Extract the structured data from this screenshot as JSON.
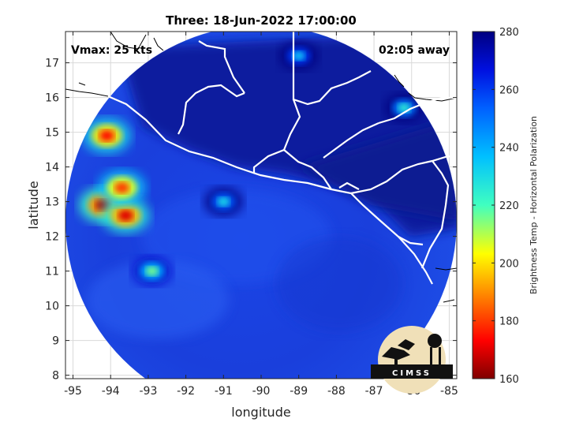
{
  "title": "Three: 18-Jun-2022 17:00:00",
  "vmax_label": "Vmax: 25 kts",
  "time_away": "02:05 away",
  "xlabel": "longitude",
  "ylabel": "latitude",
  "colorbar_label": "Brightness Temp - Horizontal Polarization",
  "logo_text": "CIMSS",
  "colors": {
    "cold_core": "#8b0000",
    "warm_background": "#0a1d9c",
    "boundary_lines": "#ffffff",
    "coastline_outside": "#000000"
  },
  "map_data": {
    "lon_range": [
      -95.2,
      -84.8
    ],
    "lat_range": [
      7.9,
      17.9
    ],
    "x_ticks": [
      -95,
      -94,
      -93,
      -92,
      -91,
      -90,
      -89,
      -88,
      -87,
      -86,
      -85
    ],
    "y_ticks": [
      8,
      9,
      10,
      11,
      12,
      13,
      14,
      15,
      16,
      17
    ],
    "grid": true,
    "swath": {
      "center_lon": -89.8,
      "center_lat": 12.6,
      "radius_deg": 5.5
    },
    "features": [
      {
        "name": "cold-cell",
        "lon": -94.2,
        "lat": 12.9,
        "temp": 165
      },
      {
        "name": "cold-cell",
        "lon": -93.6,
        "lat": 12.6,
        "temp": 170
      },
      {
        "name": "cold-cell",
        "lon": -94.1,
        "lat": 14.9,
        "temp": 175
      },
      {
        "name": "cold-cell",
        "lon": -93.7,
        "lat": 13.4,
        "temp": 180
      },
      {
        "name": "cool-cell",
        "lon": -92.9,
        "lat": 11.0,
        "temp": 215
      },
      {
        "name": "cool-cell",
        "lon": -91.0,
        "lat": 13.0,
        "temp": 230
      },
      {
        "name": "cool-cell",
        "lon": -86.2,
        "lat": 15.7,
        "temp": 225
      },
      {
        "name": "cool-cell",
        "lon": -89.0,
        "lat": 17.2,
        "temp": 235
      }
    ]
  },
  "colorbar": {
    "min": 160,
    "max": 280,
    "ticks": [
      160,
      180,
      200,
      220,
      240,
      260,
      280
    ],
    "colormap": "jet"
  }
}
